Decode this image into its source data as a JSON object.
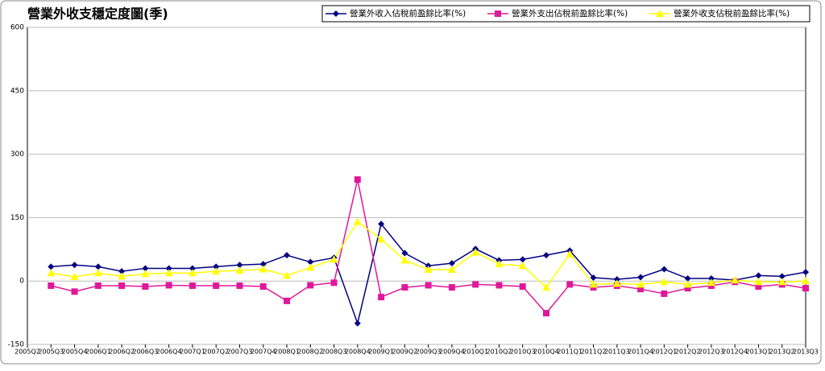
{
  "chart_data": {
    "type": "line",
    "title": "營業外收支穩定度圖(季)",
    "categories": [
      "2005Q2",
      "2005Q3",
      "2005Q4",
      "2006Q1",
      "2006Q2",
      "2006Q3",
      "2006Q4",
      "2007Q1",
      "2007Q2",
      "2007Q3",
      "2007Q4",
      "2008Q1",
      "2008Q2",
      "2008Q3",
      "2008Q4",
      "2009Q1",
      "2009Q2",
      "2009Q3",
      "2009Q4",
      "2010Q1",
      "2010Q2",
      "2010Q3",
      "2010Q4",
      "2011Q1",
      "2011Q2",
      "2011Q3",
      "2011Q4",
      "2012Q1",
      "2012Q2",
      "2012Q3",
      "2012Q4",
      "2013Q1",
      "2013Q2",
      "2013Q3"
    ],
    "series": [
      {
        "name": "營業外收入佔稅前盈餘比率(%)",
        "color": "#000080",
        "marker": "diamond",
        "values": [
          null,
          34,
          38,
          34,
          23,
          30,
          30,
          30,
          34,
          38,
          40,
          61,
          45,
          55,
          -100,
          135,
          66,
          36,
          42,
          76,
          49,
          51,
          61,
          72,
          8,
          4,
          9,
          28,
          6,
          6,
          2,
          13,
          11,
          21
        ]
      },
      {
        "name": "營業外支出佔稅前盈餘比率(%)",
        "color": "#e0189a",
        "marker": "square",
        "values": [
          null,
          -11,
          -25,
          -11,
          -11,
          -13,
          -10,
          -11,
          -11,
          -11,
          -13,
          -47,
          -10,
          -4,
          240,
          -38,
          -15,
          -10,
          -15,
          -8,
          -10,
          -13,
          -76,
          -8,
          -15,
          -11,
          -19,
          -30,
          -17,
          -11,
          -2,
          -13,
          -8,
          -17
        ]
      },
      {
        "name": "營業外收支佔稅前盈餘比率(%)",
        "color": "#ffff00",
        "marker": "triangle",
        "values": [
          null,
          19,
          10,
          19,
          11,
          17,
          19,
          19,
          23,
          25,
          28,
          13,
          32,
          51,
          140,
          99,
          49,
          27,
          27,
          68,
          40,
          36,
          -15,
          64,
          -8,
          -6,
          -8,
          -2,
          -8,
          -4,
          2,
          -2,
          -2,
          0
        ]
      }
    ],
    "ylim": [
      -150,
      600
    ],
    "yticks": [
      -150,
      0,
      150,
      300,
      450,
      600
    ],
    "grid": true,
    "legend": "top-right"
  }
}
